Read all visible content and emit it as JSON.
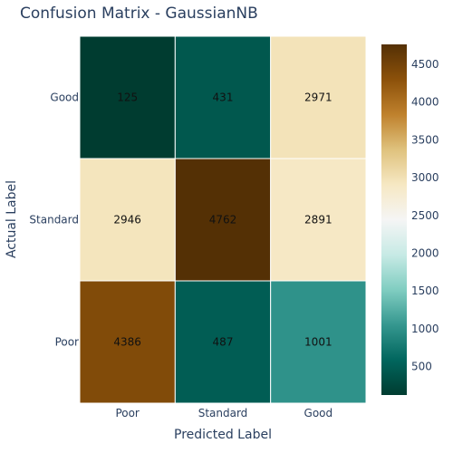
{
  "chart_data": {
    "type": "heatmap",
    "title": "Confusion Matrix - GaussianNB",
    "xlabel": "Predicted Label",
    "ylabel": "Actual Label",
    "x_categories": [
      "Poor",
      "Standard",
      "Good"
    ],
    "y_categories": [
      "Good",
      "Standard",
      "Poor"
    ],
    "values": [
      [
        125,
        431,
        2971
      ],
      [
        2946,
        4762,
        2891
      ],
      [
        4386,
        487,
        1001
      ]
    ],
    "colorscale": "BrBG (reversed)",
    "colorbar": {
      "range": [
        125,
        4762
      ],
      "ticks": [
        500,
        1000,
        1500,
        2000,
        2500,
        3000,
        3500,
        4000,
        4500
      ]
    }
  }
}
